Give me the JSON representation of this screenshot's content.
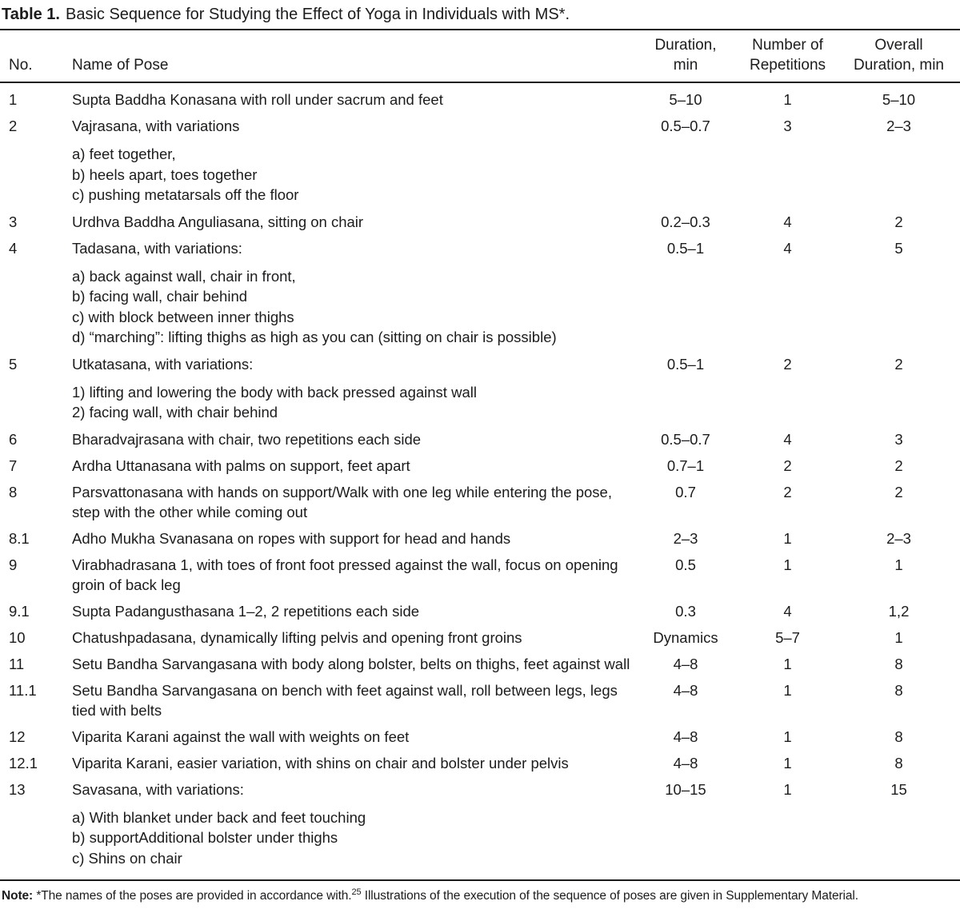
{
  "title": {
    "label": "Table 1.",
    "text": "Basic Sequence for Studying the Effect of Yoga in Individuals with MS*."
  },
  "table": {
    "headers": {
      "no": "No.",
      "name": "Name of Pose",
      "duration_line1": "Duration,",
      "duration_line2": "min",
      "repetitions_line1": "Number of",
      "repetitions_line2": "Repetitions",
      "overall_line1": "Overall",
      "overall_line2": "Duration, min"
    },
    "rows": [
      {
        "no": "1",
        "name": "Supta Baddha Konasana with roll under sacrum and feet",
        "sub": [],
        "duration": "5–10",
        "repetitions": "1",
        "overall": "5–10"
      },
      {
        "no": "2",
        "name": "Vajrasana, with variations",
        "sub": [
          "a) feet together,",
          "b) heels apart, toes together",
          "c) pushing metatarsals off the floor"
        ],
        "duration": "0.5–0.7",
        "repetitions": "3",
        "overall": "2–3"
      },
      {
        "no": "3",
        "name": "Urdhva Baddha Anguliasana, sitting on chair",
        "sub": [],
        "duration": "0.2–0.3",
        "repetitions": "4",
        "overall": "2"
      },
      {
        "no": "4",
        "name": "Tadasana, with variations:",
        "sub": [
          "a) back against wall, chair in front,",
          "b) facing wall, chair behind",
          "c) with block between inner thighs",
          "d) “marching”: lifting thighs as high as you can (sitting on chair is possible)"
        ],
        "duration": "0.5–1",
        "repetitions": "4",
        "overall": "5"
      },
      {
        "no": "5",
        "name": "Utkatasana, with variations:",
        "sub": [
          "1) lifting and lowering the body with back pressed against wall",
          "2) facing wall, with chair behind"
        ],
        "duration": "0.5–1",
        "repetitions": "2",
        "overall": "2"
      },
      {
        "no": "6",
        "name": "Bharadvajrasana with chair, two repetitions each side",
        "sub": [],
        "duration": "0.5–0.7",
        "repetitions": "4",
        "overall": "3"
      },
      {
        "no": "7",
        "name": "Ardha Uttanasana with palms on support, feet apart",
        "sub": [],
        "duration": "0.7–1",
        "repetitions": "2",
        "overall": "2"
      },
      {
        "no": "8",
        "name": "Parsvattonasana with hands on support/Walk with one leg while entering the pose, step with the other while coming out",
        "sub": [],
        "duration": "0.7",
        "repetitions": "2",
        "overall": "2"
      },
      {
        "no": "8.1",
        "name": "Adho Mukha Svanasana on ropes with support for head and hands",
        "sub": [],
        "duration": "2–3",
        "repetitions": "1",
        "overall": "2–3"
      },
      {
        "no": "9",
        "name": "Virabhadrasana 1, with toes of front foot pressed against the wall, focus on opening groin of back leg",
        "sub": [],
        "duration": "0.5",
        "repetitions": "1",
        "overall": "1"
      },
      {
        "no": "9.1",
        "name": "Supta Padangusthasana 1–2, 2 repetitions each side",
        "sub": [],
        "duration": "0.3",
        "repetitions": "4",
        "overall": "1,2"
      },
      {
        "no": "10",
        "name": "Chatushpadasana, dynamically lifting pelvis and opening front groins",
        "sub": [],
        "duration": "Dynamics",
        "repetitions": "5–7",
        "overall": "1"
      },
      {
        "no": "11",
        "name": "Setu Bandha Sarvangasana with body along bolster, belts on thighs, feet against wall",
        "sub": [],
        "duration": "4–8",
        "repetitions": "1",
        "overall": "8"
      },
      {
        "no": "11.1",
        "name": "Setu Bandha Sarvangasana on bench with feet against wall, roll between legs, legs tied with belts",
        "sub": [],
        "duration": "4–8",
        "repetitions": "1",
        "overall": "8"
      },
      {
        "no": "12",
        "name": "Viparita Karani against the wall with weights on feet",
        "sub": [],
        "duration": "4–8",
        "repetitions": "1",
        "overall": "8"
      },
      {
        "no": "12.1",
        "name": "Viparita Karani, easier variation, with shins on chair and bolster under pelvis",
        "sub": [],
        "duration": "4–8",
        "repetitions": "1",
        "overall": "8"
      },
      {
        "no": "13",
        "name": "Savasana, with variations:",
        "sub": [
          "a) With blanket under back and feet touching",
          "b) supportAdditional bolster under thighs",
          "c) Shins on chair"
        ],
        "duration": "10–15",
        "repetitions": "1",
        "overall": "15"
      }
    ]
  },
  "note": {
    "label": "Note:",
    "before_sup": " *The names of the poses are provided in accordance with.",
    "sup": "25",
    "after_sup": " Illustrations of the execution of the sequence of poses are given in Supplementary Material."
  }
}
